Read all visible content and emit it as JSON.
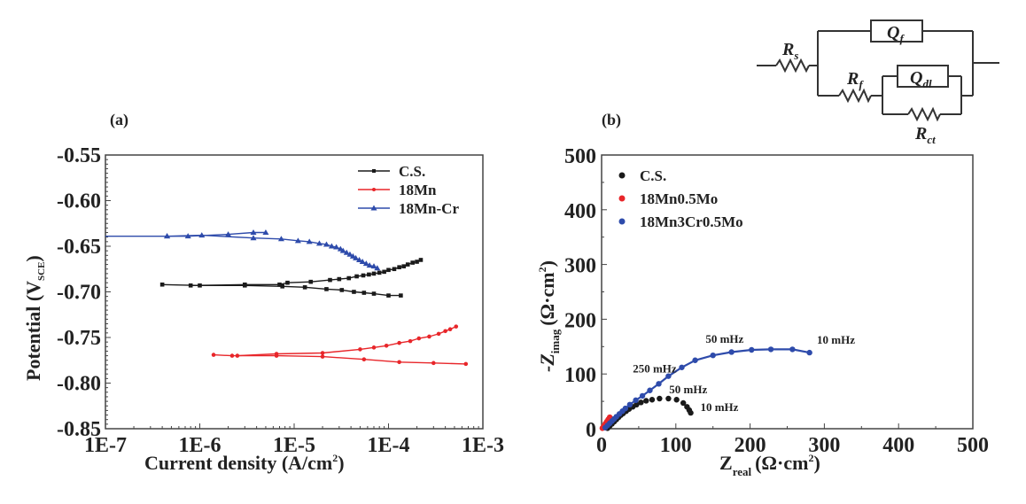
{
  "chart_data": [
    {
      "type": "line",
      "panel_label": "(a)",
      "title": "",
      "xlabel": "Current density (A/cm",
      "xlabel_sup": "2",
      "xlabel_close": ")",
      "ylabel": "Potential (V",
      "ylabel_sub": "SCE",
      "ylabel_close": ")",
      "xscale": "log",
      "xlim": [
        1e-07,
        0.001
      ],
      "ylim": [
        -0.85,
        -0.55
      ],
      "xticks": [
        1e-07,
        1e-06,
        1e-05,
        0.0001,
        0.001
      ],
      "xtick_labels": [
        "1E-7",
        "1E-6",
        "1E-5",
        "1E-4",
        "1E-3"
      ],
      "yticks": [
        -0.85,
        -0.8,
        -0.75,
        -0.7,
        -0.65,
        -0.6,
        -0.55
      ],
      "ytick_labels": [
        "-0.85",
        "-0.80",
        "-0.75",
        "-0.70",
        "-0.65",
        "-0.60",
        "-0.55"
      ],
      "grid": false,
      "legend_position": "top-right",
      "series": [
        {
          "name": "C.S.",
          "color": "#1a1a1a",
          "marker": "square",
          "cathodic": {
            "x": [
              4e-07,
              1e-06,
              3e-06,
              7.5e-06,
              1.3e-05,
              2.2e-05,
              3.2e-05,
              4.3e-05,
              5.5e-05,
              7e-05,
              0.0001,
              0.000135
            ],
            "y": [
              -0.692,
              -0.693,
              -0.693,
              -0.694,
              -0.695,
              -0.697,
              -0.698,
              -0.7,
              -0.701,
              -0.702,
              -0.704,
              -0.704
            ]
          },
          "anodic": {
            "x": [
              8e-07,
              3e-06,
              7e-06,
              8.5e-06,
              1.5e-05,
              2.4e-05,
              3e-05,
              3.8e-05,
              4.6e-05,
              5.4e-05,
              6.2e-05,
              7e-05,
              8e-05,
              9e-05,
              0.0001,
              0.000115,
              0.00013,
              0.000145,
              0.00016,
              0.00018,
              0.0002,
              0.00022
            ],
            "y": [
              -0.693,
              -0.692,
              -0.692,
              -0.69,
              -0.689,
              -0.687,
              -0.686,
              -0.685,
              -0.683,
              -0.682,
              -0.681,
              -0.68,
              -0.679,
              -0.678,
              -0.676,
              -0.675,
              -0.673,
              -0.672,
              -0.67,
              -0.668,
              -0.667,
              -0.665
            ]
          }
        },
        {
          "name": "18Mn",
          "color": "#e8262a",
          "marker": "circle",
          "cathodic": {
            "x": [
              1.4e-06,
              2.2e-06,
              6.5e-06,
              2e-05,
              5.5e-05,
              0.00013,
              0.0003,
              0.00066
            ],
            "y": [
              -0.769,
              -0.77,
              -0.77,
              -0.771,
              -0.774,
              -0.777,
              -0.778,
              -0.779
            ]
          },
          "anodic": {
            "x": [
              2.5e-06,
              6.5e-06,
              2e-05,
              5e-05,
              7e-05,
              9.5e-05,
              0.00013,
              0.00017,
              0.00021,
              0.00027,
              0.00034,
              0.0004,
              0.00045,
              0.00052
            ],
            "y": [
              -0.77,
              -0.768,
              -0.767,
              -0.763,
              -0.761,
              -0.759,
              -0.756,
              -0.754,
              -0.751,
              -0.749,
              -0.746,
              -0.743,
              -0.741,
              -0.738
            ]
          }
        },
        {
          "name": "18Mn-Cr",
          "color": "#2e4bab",
          "marker": "triangle",
          "cathodic": {
            "x": [
              1e-07,
              4.5e-07,
              7.5e-07,
              2e-06,
              3.7e-06,
              5e-06
            ],
            "y": [
              -0.639,
              -0.639,
              -0.639,
              -0.637,
              -0.635,
              -0.635
            ]
          },
          "anodic": {
            "x": [
              4.5e-07,
              1.05e-06,
              3.7e-06,
              7.3e-06,
              1.1e-05,
              1.45e-05,
              1.85e-05,
              2.2e-05,
              2.5e-05,
              2.8e-05,
              3.1e-05,
              3.3e-05,
              3.6e-05,
              3.9e-05,
              4.2e-05,
              4.5e-05,
              4.9e-05,
              5.3e-05,
              5.8e-05,
              6.3e-05,
              7e-05,
              7.6e-05
            ],
            "y": [
              -0.639,
              -0.638,
              -0.641,
              -0.642,
              -0.644,
              -0.645,
              -0.647,
              -0.648,
              -0.65,
              -0.651,
              -0.653,
              -0.655,
              -0.657,
              -0.659,
              -0.661,
              -0.663,
              -0.665,
              -0.667,
              -0.669,
              -0.671,
              -0.672,
              -0.674
            ]
          }
        }
      ]
    },
    {
      "type": "scatter",
      "panel_label": "(b)",
      "title": "",
      "xlabel": "Z",
      "xlabel_sub": "real",
      "xlabel_unit": "(Ω·cm",
      "xlabel_sup": "2",
      "xlabel_close": ")",
      "ylabel": "-Z",
      "ylabel_sub": "imag",
      "ylabel_unit": "(Ω·cm",
      "ylabel_sup": "2",
      "ylabel_close": ")",
      "xlim": [
        0,
        500
      ],
      "ylim": [
        0,
        500
      ],
      "xticks": [
        0,
        100,
        200,
        300,
        400,
        500
      ],
      "xtick_labels": [
        "0",
        "100",
        "200",
        "300",
        "400",
        "500"
      ],
      "yticks": [
        0,
        100,
        200,
        300,
        400,
        500
      ],
      "ytick_labels": [
        "0",
        "100",
        "200",
        "300",
        "400",
        "500"
      ],
      "grid": false,
      "legend_position": "top-left",
      "series": [
        {
          "name": "C.S.",
          "color": "#1a1a1a",
          "fit_line": false,
          "x": [
            8,
            11,
            14,
            17,
            20,
            23,
            26,
            29,
            33,
            37,
            42,
            47,
            53,
            60,
            68,
            78,
            90,
            101,
            110,
            115,
            118,
            120
          ],
          "y": [
            1,
            5,
            9,
            13,
            17,
            21,
            25,
            28,
            32,
            36,
            40,
            44,
            48,
            51,
            53,
            55,
            55,
            53,
            47,
            40,
            34,
            29
          ]
        },
        {
          "name": "18Mn0.5Mo",
          "color": "#e8262a",
          "fit_line": false,
          "x": [
            1,
            3,
            5,
            7,
            9,
            11
          ],
          "y": [
            1,
            5,
            9,
            13,
            17,
            21
          ]
        },
        {
          "name": "18Mn3Cr0.5Mo",
          "color": "#2e4bab",
          "fit_line": true,
          "x": [
            5,
            8,
            11,
            14,
            17,
            20,
            24,
            28,
            32,
            38,
            46,
            55,
            65,
            77,
            90,
            108,
            126,
            150,
            175,
            202,
            228,
            257,
            280
          ],
          "y": [
            2,
            6,
            10,
            14,
            18,
            22,
            27,
            32,
            37,
            44,
            52,
            60,
            70,
            82,
            96,
            112,
            125,
            134,
            140,
            144,
            145,
            145,
            139
          ]
        }
      ],
      "annotations": [
        {
          "text": "250 mHz",
          "x": 42,
          "y": 103
        },
        {
          "text": "50 mHz",
          "x": 140,
          "y": 157
        },
        {
          "text": "10 mHz",
          "x": 290,
          "y": 155
        },
        {
          "text": "50 mHz",
          "x": 91,
          "y": 65
        },
        {
          "text": "10 mHz",
          "x": 133,
          "y": 32
        }
      ]
    }
  ],
  "circuit": {
    "labels": {
      "rs": "R",
      "rs_sub": "s",
      "qf": "Q",
      "qf_sub": "f",
      "rf": "R",
      "rf_sub": "f",
      "qdl": "Q",
      "qdl_sub": "dl",
      "rct": "R",
      "rct_sub": "ct"
    }
  }
}
